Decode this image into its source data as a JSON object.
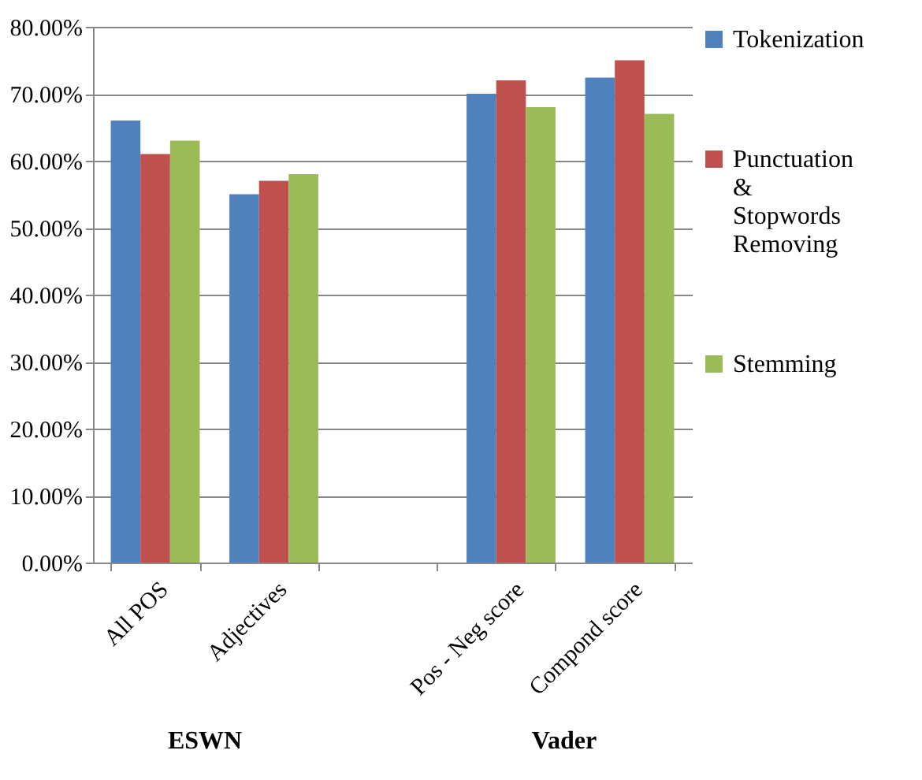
{
  "chart_data": {
    "type": "bar",
    "categories": [
      "All POS",
      "Adjectives",
      null,
      "Pos - Neg score",
      "Compond score"
    ],
    "series": [
      {
        "name": "Tokenization",
        "color": "#4f81bd",
        "values": [
          66,
          55,
          null,
          70,
          72.4
        ]
      },
      {
        "name": "Punctuation & Stopwords Removing",
        "color": "#c0504d",
        "values": [
          61,
          57,
          null,
          72,
          75
        ]
      },
      {
        "name": "Stemming",
        "color": "#9bbb59",
        "values": [
          63,
          58,
          null,
          68,
          67
        ]
      }
    ],
    "ylim": [
      0,
      80
    ],
    "yticks": [
      {
        "value": 0,
        "label": "0.00%"
      },
      {
        "value": 10,
        "label": "10.00%"
      },
      {
        "value": 20,
        "label": "20.00%"
      },
      {
        "value": 30,
        "label": "30.00%"
      },
      {
        "value": 40,
        "label": "40.00%"
      },
      {
        "value": 50,
        "label": "50.00%"
      },
      {
        "value": 60,
        "label": "60.00%"
      },
      {
        "value": 70,
        "label": "70.00%"
      },
      {
        "value": 80,
        "label": "80.00%"
      }
    ],
    "grid": "y",
    "legend": "right",
    "annotations": [
      "ESWN",
      "Vader"
    ]
  }
}
